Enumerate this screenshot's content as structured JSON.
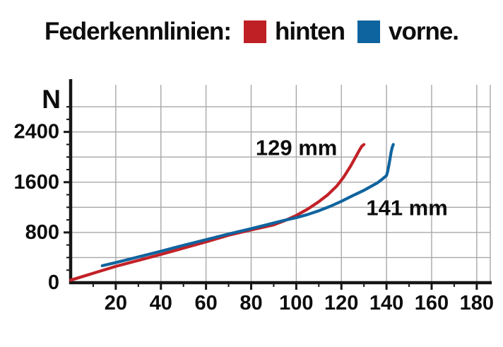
{
  "header": {
    "title": "Federkennlinien:",
    "legend": [
      {
        "label": "hinten",
        "color": "#be2026"
      },
      {
        "label": "vorne.",
        "color": "#0e649e"
      }
    ]
  },
  "chart_data": {
    "type": "line",
    "title": "Federkennlinien",
    "xlabel": "",
    "ylabel": "N",
    "xlim": [
      0,
      186
    ],
    "ylim": [
      0,
      3150
    ],
    "x_ticks": [
      20,
      40,
      60,
      80,
      100,
      120,
      140,
      160,
      180
    ],
    "x_minor_step": 10,
    "y_ticks": [
      0,
      800,
      1600,
      2400
    ],
    "y_gridlines": [
      400,
      800,
      1200,
      1600,
      2000,
      2400,
      2800
    ],
    "y_minor_step": 200,
    "grid": true,
    "legend_position": "top",
    "series": [
      {
        "name": "hinten",
        "color": "#c22127",
        "points": [
          [
            0,
            40
          ],
          [
            10,
            150
          ],
          [
            20,
            260
          ],
          [
            30,
            355
          ],
          [
            40,
            450
          ],
          [
            50,
            550
          ],
          [
            60,
            650
          ],
          [
            70,
            755
          ],
          [
            80,
            840
          ],
          [
            90,
            920
          ],
          [
            95,
            990
          ],
          [
            100,
            1070
          ],
          [
            105,
            1170
          ],
          [
            110,
            1290
          ],
          [
            114,
            1400
          ],
          [
            118,
            1540
          ],
          [
            121,
            1680
          ],
          [
            124,
            1850
          ],
          [
            126,
            1980
          ],
          [
            128,
            2110
          ],
          [
            129,
            2170
          ],
          [
            130,
            2200
          ]
        ]
      },
      {
        "name": "vorne",
        "color": "#10649e",
        "points": [
          [
            14,
            270
          ],
          [
            20,
            320
          ],
          [
            30,
            410
          ],
          [
            40,
            500
          ],
          [
            50,
            595
          ],
          [
            60,
            685
          ],
          [
            70,
            775
          ],
          [
            80,
            860
          ],
          [
            90,
            950
          ],
          [
            95,
            995
          ],
          [
            100,
            1035
          ],
          [
            105,
            1085
          ],
          [
            110,
            1145
          ],
          [
            115,
            1215
          ],
          [
            120,
            1295
          ],
          [
            125,
            1385
          ],
          [
            130,
            1470
          ],
          [
            133,
            1530
          ],
          [
            136,
            1590
          ],
          [
            138,
            1645
          ],
          [
            140,
            1705
          ],
          [
            140.5,
            1770
          ],
          [
            141,
            1860
          ],
          [
            141.5,
            1960
          ],
          [
            142,
            2070
          ],
          [
            142.5,
            2150
          ],
          [
            143,
            2200
          ]
        ]
      }
    ],
    "annotations": [
      {
        "text": "129 mm",
        "x": 82,
        "y": 2150,
        "series": "hinten"
      },
      {
        "text": "141 mm",
        "x": 131,
        "y": 1190,
        "series": "vorne"
      }
    ]
  },
  "colors": {
    "grid": "#a8a8a8",
    "axis": "#161616",
    "text": "#0d0d0d",
    "background": "#ffffff"
  }
}
